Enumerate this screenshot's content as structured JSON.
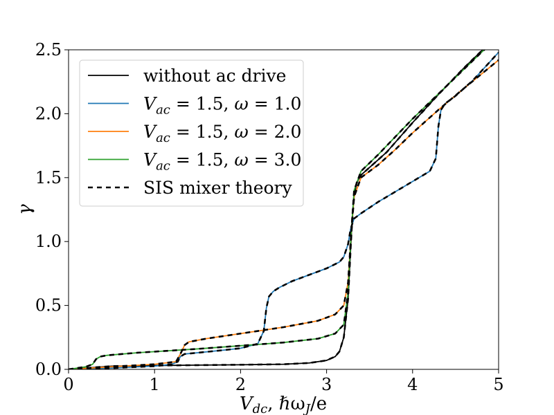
{
  "chart_data": {
    "type": "line",
    "title": "",
    "xlabel": {
      "main": "V",
      "sub": "dc",
      "rest": ", ℏω",
      "sub2": "J",
      "rest2": "/e"
    },
    "ylabel": "γ",
    "xlim": [
      0,
      5
    ],
    "ylim": [
      0,
      2.5
    ],
    "x_ticks": [
      {
        "value": 0,
        "label": "0"
      },
      {
        "value": 1,
        "label": "1"
      },
      {
        "value": 2,
        "label": "2"
      },
      {
        "value": 3,
        "label": "3"
      },
      {
        "value": 4,
        "label": "4"
      },
      {
        "value": 5,
        "label": "5"
      }
    ],
    "y_ticks": [
      {
        "value": 0,
        "label": "0.0"
      },
      {
        "value": 0.5,
        "label": "0.5"
      },
      {
        "value": 1.0,
        "label": "1.0"
      },
      {
        "value": 1.5,
        "label": "1.5"
      },
      {
        "value": 2.0,
        "label": "2.0"
      },
      {
        "value": 2.5,
        "label": "2.5"
      }
    ],
    "grid": false,
    "legend_position": "upper-left",
    "series": [
      {
        "name": "without ac drive",
        "name_parts": {
          "text": "without ac drive"
        },
        "color": "#000000",
        "dashed": false,
        "x": [
          0,
          0.5,
          1.0,
          1.5,
          2.0,
          2.5,
          2.8,
          3.0,
          3.1,
          3.15,
          3.2,
          3.25,
          3.28,
          3.3,
          3.32,
          3.35,
          3.4,
          3.5,
          3.7,
          4.0,
          4.3,
          4.6,
          4.8,
          5.0
        ],
        "y": [
          0,
          0.025,
          0.03,
          0.033,
          0.036,
          0.04,
          0.05,
          0.07,
          0.1,
          0.14,
          0.25,
          0.55,
          0.95,
          1.2,
          1.35,
          1.46,
          1.52,
          1.58,
          1.7,
          1.93,
          2.15,
          2.36,
          2.49,
          2.62
        ]
      },
      {
        "name": "V_ac = 1.5, ω = 1.0",
        "name_parts": {
          "var": "V",
          "sub": "ac",
          "mid": " = 1.5, ",
          "omega": "ω",
          "end": " = 1.0"
        },
        "color": "#1f77b4",
        "dashed": false,
        "x": [
          0,
          0.5,
          1.0,
          1.2,
          1.27,
          1.3,
          1.35,
          1.5,
          1.8,
          2.0,
          2.2,
          2.27,
          2.3,
          2.33,
          2.38,
          2.45,
          2.6,
          2.8,
          3.0,
          3.15,
          3.2,
          3.25,
          3.28,
          3.32,
          3.4,
          3.6,
          3.8,
          4.0,
          4.2,
          4.27,
          4.3,
          4.33,
          4.38,
          4.5,
          4.7,
          5.0
        ],
        "y": [
          0,
          0.01,
          0.025,
          0.04,
          0.06,
          0.1,
          0.12,
          0.13,
          0.15,
          0.165,
          0.2,
          0.3,
          0.48,
          0.57,
          0.61,
          0.64,
          0.69,
          0.74,
          0.79,
          0.84,
          0.88,
          0.98,
          1.1,
          1.18,
          1.22,
          1.31,
          1.39,
          1.47,
          1.55,
          1.65,
          1.9,
          2.03,
          2.08,
          2.14,
          2.26,
          2.48
        ]
      },
      {
        "name": "V_ac = 1.5, ω = 2.0",
        "name_parts": {
          "var": "V",
          "sub": "ac",
          "mid": " = 1.5, ",
          "omega": "ω",
          "end": " = 2.0"
        },
        "color": "#ff7f0e",
        "dashed": false,
        "x": [
          0,
          0.5,
          1.0,
          1.25,
          1.3,
          1.35,
          1.4,
          1.6,
          2.0,
          2.5,
          2.9,
          3.1,
          3.2,
          3.25,
          3.28,
          3.32,
          3.4,
          3.6,
          3.8,
          4.0,
          4.3,
          4.6,
          5.0
        ],
        "y": [
          0,
          0.02,
          0.04,
          0.06,
          0.12,
          0.19,
          0.215,
          0.24,
          0.28,
          0.33,
          0.38,
          0.43,
          0.5,
          0.68,
          1.0,
          1.35,
          1.5,
          1.6,
          1.72,
          1.85,
          2.03,
          2.2,
          2.42
        ]
      },
      {
        "name": "V_ac = 1.5, ω = 3.0",
        "name_parts": {
          "var": "V",
          "sub": "ac",
          "mid": " = 1.5, ",
          "omega": "ω",
          "end": " = 3.0"
        },
        "color": "#2ca02c",
        "dashed": false,
        "x": [
          0,
          0.2,
          0.28,
          0.32,
          0.37,
          0.45,
          0.8,
          1.5,
          2.0,
          2.5,
          2.9,
          3.1,
          3.2,
          3.25,
          3.28,
          3.32,
          3.4,
          3.6,
          4.0,
          4.4,
          4.8,
          5.0
        ],
        "y": [
          0,
          0.02,
          0.04,
          0.08,
          0.1,
          0.11,
          0.13,
          0.16,
          0.185,
          0.21,
          0.24,
          0.28,
          0.35,
          0.6,
          1.0,
          1.4,
          1.55,
          1.68,
          1.96,
          2.22,
          2.48,
          2.6
        ]
      },
      {
        "name": "SIS mixer theory",
        "name_parts": {
          "text": "SIS mixer theory"
        },
        "color": "#000000",
        "dashed": true,
        "legend_only": true,
        "x": [],
        "y": []
      }
    ],
    "overlay_dashed_on": [
      0,
      1,
      2,
      3
    ]
  }
}
